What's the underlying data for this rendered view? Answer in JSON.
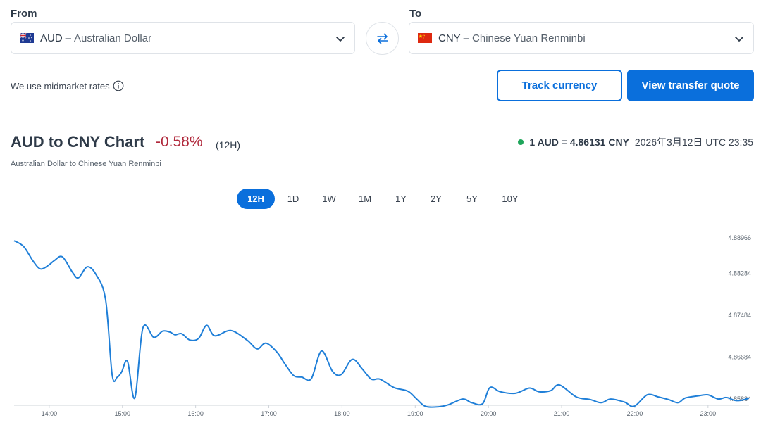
{
  "converter": {
    "from_label": "From",
    "to_label": "To",
    "from": {
      "code": "AUD",
      "separator": "–",
      "name": "Australian Dollar",
      "flag": "australia-flag-icon"
    },
    "to": {
      "code": "CNY",
      "separator": "–",
      "name": "Chinese Yuan Renminbi",
      "flag": "china-flag-icon"
    },
    "swap_icon": "swap-arrows-icon"
  },
  "midmarket_note": "We use midmarket rates",
  "actions": {
    "track_label": "Track currency",
    "quote_label": "View transfer quote"
  },
  "chart_header": {
    "title": "AUD to CNY Chart",
    "change": "-0.58%",
    "period": "(12H)",
    "subtitle": "Australian Dollar to Chinese Yuan Renminbi",
    "rate": "1 AUD = 4.86131 CNY",
    "timestamp": "2026年3月12日 UTC 23:35"
  },
  "ranges": [
    {
      "label": "12H",
      "active": true
    },
    {
      "label": "1D",
      "active": false
    },
    {
      "label": "1W",
      "active": false
    },
    {
      "label": "1M",
      "active": false
    },
    {
      "label": "1Y",
      "active": false
    },
    {
      "label": "2Y",
      "active": false
    },
    {
      "label": "5Y",
      "active": false
    },
    {
      "label": "10Y",
      "active": false
    }
  ],
  "colors": {
    "accent": "#0a6fdc",
    "negative": "#b0283b",
    "live_dot": "#1ea55a",
    "line": "#1f7fd8"
  },
  "chart_data": {
    "type": "line",
    "x_ticks": [
      "14:00",
      "15:00",
      "16:00",
      "17:00",
      "18:00",
      "19:00",
      "20:00",
      "21:00",
      "22:00",
      "23:00"
    ],
    "y_ticks": [
      "4.88966",
      "4.88284",
      "4.87484",
      "4.86684",
      "4.85884"
    ],
    "xlim": [
      13.52,
      23.56
    ],
    "ylim": [
      4.8576,
      4.891
    ],
    "grid": false,
    "series": [
      {
        "x": [
          13.52,
          13.65,
          13.78,
          13.88,
          13.99,
          14.07,
          14.18,
          14.32,
          14.4,
          14.52,
          14.64,
          14.77,
          14.86,
          14.93,
          14.99,
          15.07,
          15.17,
          15.28,
          15.43,
          15.55,
          15.65,
          15.72,
          15.81,
          15.92,
          16.04,
          16.15,
          16.26,
          16.48,
          16.7,
          16.84,
          16.96,
          17.11,
          17.22,
          17.34,
          17.45,
          17.58,
          17.72,
          17.87,
          17.99,
          18.14,
          18.28,
          18.4,
          18.52,
          18.71,
          18.9,
          19.02,
          19.14,
          19.31,
          19.45,
          19.65,
          19.77,
          19.92,
          20.02,
          20.16,
          20.37,
          20.56,
          20.69,
          20.85,
          20.97,
          21.2,
          21.39,
          21.54,
          21.67,
          21.86,
          21.99,
          22.17,
          22.32,
          22.46,
          22.59,
          22.69,
          22.86,
          23.0,
          23.14,
          23.25,
          23.38,
          23.5,
          23.56
        ],
        "y": [
          4.8891,
          4.888,
          4.8852,
          4.8837,
          4.8844,
          4.8853,
          4.886,
          4.883,
          4.882,
          4.8841,
          4.8826,
          4.8778,
          4.8634,
          4.863,
          4.864,
          4.866,
          4.859,
          4.8724,
          4.8706,
          4.8718,
          4.8716,
          4.8711,
          4.8713,
          4.8701,
          4.8704,
          4.8729,
          4.8709,
          4.8719,
          4.8701,
          4.8684,
          4.8695,
          4.8678,
          4.8655,
          4.8633,
          4.863,
          4.8627,
          4.868,
          4.8641,
          4.8635,
          4.8664,
          4.8645,
          4.8626,
          4.8626,
          4.861,
          4.8603,
          4.8588,
          4.8574,
          4.8573,
          4.8577,
          4.8588,
          4.8581,
          4.8579,
          4.861,
          4.8602,
          4.8599,
          4.8609,
          4.8602,
          4.8604,
          4.8615,
          4.8592,
          4.8587,
          4.8581,
          4.8588,
          4.8582,
          4.8574,
          4.8596,
          4.8592,
          4.8587,
          4.8581,
          4.859,
          4.8594,
          4.8596,
          4.8588,
          4.8591,
          4.8585,
          4.8587,
          4.859
        ]
      }
    ]
  }
}
